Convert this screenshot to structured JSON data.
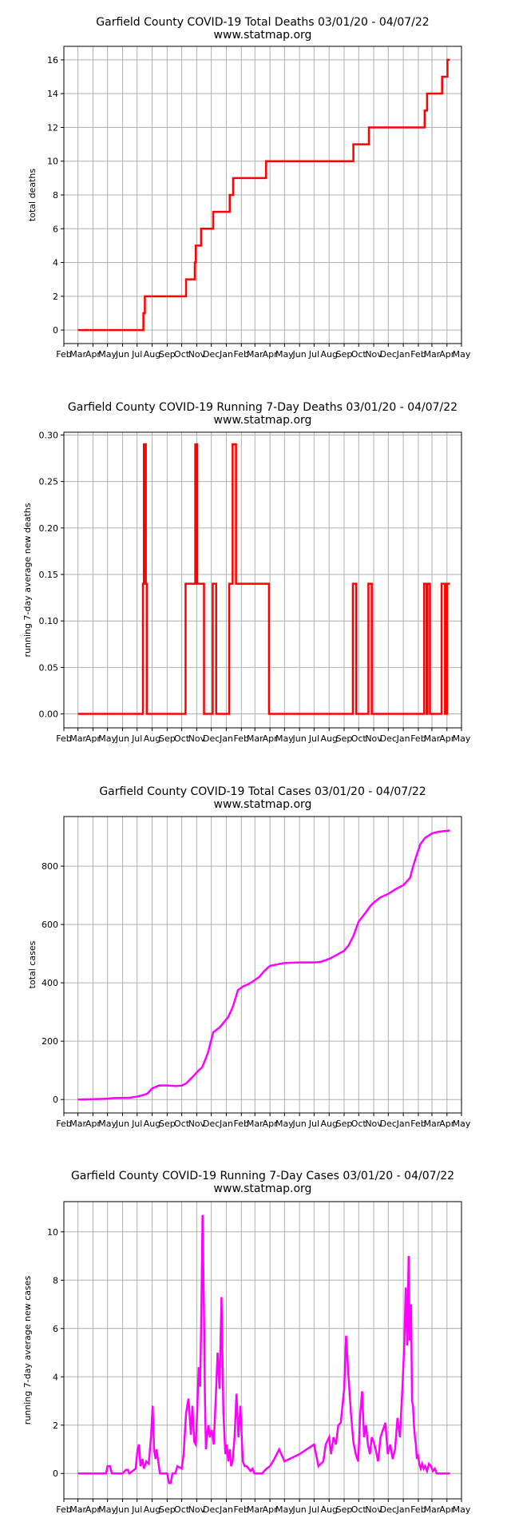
{
  "chart_data": [
    {
      "type": "line",
      "title": "Garfield County COVID-19 Total Deaths 03/01/20 - 04/07/22",
      "subtitle": "www.statmap.org",
      "ylabel": "total deaths",
      "xlabel": "",
      "x_tick_labels": [
        "Feb",
        "Mar",
        "Apr",
        "May",
        "Jun",
        "Jul",
        "Aug",
        "Sep",
        "Oct",
        "Nov",
        "Dec",
        "Jan",
        "Feb",
        "Mar",
        "Apr",
        "May",
        "Jun",
        "Jul",
        "Aug",
        "Sep",
        "Oct",
        "Nov",
        "Dec",
        "Jan",
        "Feb",
        "Mar",
        "Apr",
        "May"
      ],
      "y_ticks": [
        0,
        2,
        4,
        6,
        8,
        10,
        12,
        14,
        16
      ],
      "ylim": [
        -0.8,
        16.8
      ],
      "xlim": [
        "2020-02-01",
        "2022-05-01"
      ],
      "grid": true,
      "color": "#ff0000",
      "step": true,
      "series": [
        {
          "x": [
            "2020-03-01",
            "2020-07-14",
            "2020-07-15",
            "2020-07-17",
            "2020-10-10",
            "2020-10-15",
            "2020-10-28",
            "2020-10-30",
            "2020-11-10",
            "2020-12-05",
            "2021-01-08",
            "2021-01-12",
            "2021-01-15",
            "2021-03-24",
            "2021-09-20",
            "2021-10-22",
            "2022-02-14",
            "2022-02-19",
            "2022-03-22",
            "2022-04-02",
            "2022-04-07"
          ],
          "y": [
            0,
            1,
            1,
            2,
            3,
            3,
            4,
            5,
            6,
            7,
            8,
            8,
            9,
            10,
            11,
            12,
            13,
            14,
            15,
            16,
            16
          ]
        }
      ]
    },
    {
      "type": "line",
      "title": "Garfield County COVID-19 Running 7-Day Deaths 03/01/20 - 04/07/22",
      "subtitle": "www.statmap.org",
      "ylabel": "running 7-day average new deaths",
      "xlabel": "",
      "x_tick_labels": [
        "Feb",
        "Mar",
        "Apr",
        "May",
        "Jun",
        "Jul",
        "Aug",
        "Sep",
        "Oct",
        "Nov",
        "Dec",
        "Jan",
        "Feb",
        "Mar",
        "Apr",
        "May",
        "Jun",
        "Jul",
        "Aug",
        "Sep",
        "Oct",
        "Nov",
        "Dec",
        "Jan",
        "Feb",
        "Mar",
        "Apr",
        "May"
      ],
      "y_ticks": [
        0.0,
        0.05,
        0.1,
        0.15,
        0.2,
        0.25,
        0.3
      ],
      "y_tick_labels": [
        "0.00",
        "0.05",
        "0.10",
        "0.15",
        "0.20",
        "0.25",
        "0.30"
      ],
      "ylim": [
        -0.015,
        0.303
      ],
      "xlim": [
        "2020-02-01",
        "2022-05-01"
      ],
      "grid": true,
      "color": "#ff0000",
      "step": true,
      "series": [
        {
          "x": [
            "2020-03-01",
            "2020-07-13",
            "2020-07-15",
            "2020-07-19",
            "2020-07-21",
            "2020-10-09",
            "2020-10-14",
            "2020-10-16",
            "2020-10-27",
            "2020-10-29",
            "2020-11-02",
            "2020-11-09",
            "2020-11-16",
            "2020-12-04",
            "2020-12-11",
            "2021-01-07",
            "2021-01-10",
            "2021-01-14",
            "2021-01-21",
            "2021-03-23",
            "2021-03-30",
            "2021-09-19",
            "2021-09-26",
            "2021-10-21",
            "2021-10-28",
            "2022-02-13",
            "2022-02-18",
            "2022-02-20",
            "2022-02-25",
            "2022-03-21",
            "2022-03-28",
            "2022-04-01",
            "2022-04-07"
          ],
          "y": [
            0,
            0.14,
            0.29,
            0.14,
            0,
            0.14,
            0.14,
            0.14,
            0.14,
            0.29,
            0.14,
            0.14,
            0,
            0.14,
            0,
            0.14,
            0.14,
            0.29,
            0.14,
            0.14,
            0,
            0.14,
            0,
            0.14,
            0,
            0.14,
            0,
            0.14,
            0,
            0.14,
            0,
            0.14,
            0.14
          ]
        }
      ]
    },
    {
      "type": "line",
      "title": "Garfield County COVID-19 Total Cases 03/01/20 - 04/07/22",
      "subtitle": "www.statmap.org",
      "ylabel": "total cases",
      "xlabel": "",
      "x_tick_labels": [
        "Feb",
        "Mar",
        "Apr",
        "May",
        "Jun",
        "Jul",
        "Aug",
        "Sep",
        "Oct",
        "Nov",
        "Dec",
        "Jan",
        "Feb",
        "Mar",
        "Apr",
        "May",
        "Jun",
        "Jul",
        "Aug",
        "Sep",
        "Oct",
        "Nov",
        "Dec",
        "Jan",
        "Feb",
        "Mar",
        "Apr",
        "May"
      ],
      "y_ticks": [
        0,
        200,
        400,
        600,
        800
      ],
      "ylim": [
        -46,
        970
      ],
      "xlim": [
        "2020-02-01",
        "2022-05-01"
      ],
      "grid": true,
      "color": "#ff00ff",
      "step": false,
      "series": [
        {
          "x": [
            "2020-03-01",
            "2020-04-15",
            "2020-05-01",
            "2020-05-15",
            "2020-06-15",
            "2020-07-01",
            "2020-07-15",
            "2020-07-22",
            "2020-08-01",
            "2020-08-15",
            "2020-09-01",
            "2020-09-20",
            "2020-10-01",
            "2020-10-10",
            "2020-10-25",
            "2020-11-05",
            "2020-11-12",
            "2020-11-17",
            "2020-11-24",
            "2020-12-05",
            "2020-12-20",
            "2020-12-27",
            "2021-01-05",
            "2021-01-15",
            "2021-01-25",
            "2021-02-05",
            "2021-02-15",
            "2021-02-25",
            "2021-03-01",
            "2021-03-10",
            "2021-03-20",
            "2021-04-01",
            "2021-05-01",
            "2021-06-01",
            "2021-07-01",
            "2021-07-15",
            "2021-08-01",
            "2021-08-15",
            "2021-09-01",
            "2021-09-10",
            "2021-09-20",
            "2021-10-01",
            "2021-10-15",
            "2021-10-25",
            "2021-11-01",
            "2021-11-15",
            "2021-12-01",
            "2021-12-15",
            "2022-01-01",
            "2022-01-08",
            "2022-01-15",
            "2022-01-20",
            "2022-01-27",
            "2022-02-05",
            "2022-02-15",
            "2022-03-01",
            "2022-03-15",
            "2022-04-07"
          ],
          "y": [
            0,
            2,
            3,
            5,
            6,
            10,
            16,
            20,
            38,
            48,
            48,
            46,
            48,
            55,
            80,
            100,
            110,
            130,
            160,
            230,
            250,
            265,
            283,
            320,
            375,
            388,
            395,
            405,
            410,
            420,
            440,
            458,
            468,
            470,
            470,
            472,
            482,
            494,
            510,
            528,
            560,
            610,
            640,
            663,
            675,
            693,
            705,
            720,
            735,
            747,
            760,
            792,
            830,
            875,
            897,
            912,
            918,
            922
          ]
        }
      ]
    },
    {
      "type": "line",
      "title": "Garfield County COVID-19 Running 7-Day Cases 03/01/20 - 04/07/22",
      "subtitle": "www.statmap.org",
      "ylabel": "running 7-day average new cases",
      "xlabel": "",
      "x_tick_labels": [
        "Feb",
        "Mar",
        "Apr",
        "May",
        "Jun",
        "Jul",
        "Aug",
        "Sep",
        "Oct",
        "Nov",
        "Dec",
        "Jan",
        "Feb",
        "Mar",
        "Apr",
        "May",
        "Jun",
        "Jul",
        "Aug",
        "Sep",
        "Oct",
        "Nov",
        "Dec",
        "Jan",
        "Feb",
        "Mar",
        "Apr",
        "May"
      ],
      "y_ticks": [
        0,
        2,
        4,
        6,
        8,
        10
      ],
      "ylim": [
        -1.05,
        11.25
      ],
      "xlim": [
        "2020-02-01",
        "2022-05-01"
      ],
      "grid": true,
      "color": "#ff00ff",
      "step": false,
      "series": [
        {
          "x": [
            "2020-03-01",
            "2020-04-01",
            "2020-04-28",
            "2020-05-01",
            "2020-05-06",
            "2020-05-10",
            "2020-06-01",
            "2020-06-08",
            "2020-06-12",
            "2020-06-15",
            "2020-06-28",
            "2020-07-02",
            "2020-07-05",
            "2020-07-08",
            "2020-07-12",
            "2020-07-15",
            "2020-07-20",
            "2020-07-25",
            "2020-07-30",
            "2020-08-02",
            "2020-08-05",
            "2020-08-08",
            "2020-08-10",
            "2020-08-13",
            "2020-08-17",
            "2020-08-22",
            "2020-09-01",
            "2020-09-05",
            "2020-09-08",
            "2020-09-12",
            "2020-09-18",
            "2020-09-22",
            "2020-10-01",
            "2020-10-05",
            "2020-10-10",
            "2020-10-15",
            "2020-10-20",
            "2020-10-23",
            "2020-10-27",
            "2020-10-30",
            "2020-11-02",
            "2020-11-05",
            "2020-11-08",
            "2020-11-10",
            "2020-11-13",
            "2020-11-16",
            "2020-11-18",
            "2020-11-20",
            "2020-11-22",
            "2020-11-25",
            "2020-11-28",
            "2020-12-02",
            "2020-12-06",
            "2020-12-10",
            "2020-12-14",
            "2020-12-18",
            "2020-12-22",
            "2020-12-26",
            "2020-12-30",
            "2021-01-02",
            "2021-01-05",
            "2021-01-08",
            "2021-01-11",
            "2021-01-14",
            "2021-01-18",
            "2021-01-22",
            "2021-01-26",
            "2021-01-30",
            "2021-02-04",
            "2021-02-08",
            "2021-02-12",
            "2021-02-16",
            "2021-02-20",
            "2021-02-24",
            "2021-02-28",
            "2021-03-04",
            "2021-03-08",
            "2021-03-12",
            "2021-03-16",
            "2021-03-20",
            "2021-03-25",
            "2021-04-01",
            "2021-04-10",
            "2021-04-20",
            "2021-05-01",
            "2021-06-01",
            "2021-07-01",
            "2021-07-10",
            "2021-07-20",
            "2021-07-25",
            "2021-08-01",
            "2021-08-05",
            "2021-08-10",
            "2021-08-15",
            "2021-08-20",
            "2021-08-25",
            "2021-09-01",
            "2021-09-05",
            "2021-09-10",
            "2021-09-15",
            "2021-09-20",
            "2021-09-25",
            "2021-09-30",
            "2021-10-04",
            "2021-10-08",
            "2021-10-12",
            "2021-10-16",
            "2021-10-20",
            "2021-10-24",
            "2021-10-28",
            "2021-11-01",
            "2021-11-05",
            "2021-11-10",
            "2021-11-15",
            "2021-11-20",
            "2021-11-25",
            "2021-11-30",
            "2021-12-05",
            "2021-12-10",
            "2021-12-15",
            "2021-12-20",
            "2021-12-25",
            "2021-12-30",
            "2022-01-03",
            "2022-01-06",
            "2022-01-09",
            "2022-01-12",
            "2022-01-14",
            "2022-01-17",
            "2022-01-19",
            "2022-01-21",
            "2022-01-23",
            "2022-01-25",
            "2022-01-27",
            "2022-01-29",
            "2022-01-31",
            "2022-02-03",
            "2022-02-06",
            "2022-02-09",
            "2022-02-12",
            "2022-02-15",
            "2022-02-19",
            "2022-02-23",
            "2022-02-27",
            "2022-03-03",
            "2022-03-07",
            "2022-03-11",
            "2022-03-15",
            "2022-03-20",
            "2022-03-25",
            "2022-03-30",
            "2022-04-04",
            "2022-04-07"
          ],
          "y": [
            0,
            0,
            0,
            0.3,
            0.3,
            0,
            0,
            0.15,
            0.15,
            0,
            0.2,
            1.0,
            1.2,
            0.3,
            0.6,
            0.2,
            0.5,
            0.4,
            1.6,
            2.8,
            1.0,
            0.6,
            1.0,
            0.6,
            0,
            0,
            0,
            -0.4,
            -0.4,
            0,
            0,
            0.3,
            0.2,
            0.8,
            2.5,
            3.1,
            1.6,
            2.8,
            1.3,
            1.2,
            2.6,
            4.4,
            3.6,
            6.0,
            10.7,
            6.5,
            3.0,
            1.0,
            1.5,
            2.0,
            1.5,
            1.8,
            1.2,
            3.0,
            5.0,
            3.5,
            7.3,
            2.5,
            0.8,
            1.2,
            0.5,
            1.0,
            0.3,
            0.5,
            1.5,
            3.3,
            1.5,
            2.8,
            0.5,
            0.3,
            0.3,
            0.2,
            0.1,
            0.2,
            0,
            0,
            0,
            0,
            0,
            0.1,
            0.2,
            0.3,
            0.6,
            1.0,
            0.5,
            0.8,
            1.2,
            0.3,
            0.5,
            1.2,
            1.5,
            0.8,
            1.5,
            1.2,
            2.0,
            2.1,
            3.5,
            5.7,
            4.0,
            2.5,
            1.3,
            0.8,
            0.5,
            2.4,
            3.4,
            1.5,
            2.0,
            1.2,
            0.8,
            1.5,
            1.3,
            1.0,
            0.5,
            1.5,
            1.8,
            2.1,
            0.8,
            1.2,
            0.6,
            1.0,
            2.3,
            1.5,
            3.5,
            5.3,
            7.7,
            5.3,
            9.0,
            5.5,
            7.0,
            3.0,
            2.8,
            2.0,
            1.5,
            1.2,
            0.6,
            0.8,
            0.4,
            0.2,
            0.4,
            0.2,
            0.3,
            0.1,
            0.4,
            0.3,
            0.1,
            0.2,
            0,
            0,
            0,
            0,
            0,
            0,
            0
          ]
        }
      ]
    }
  ]
}
